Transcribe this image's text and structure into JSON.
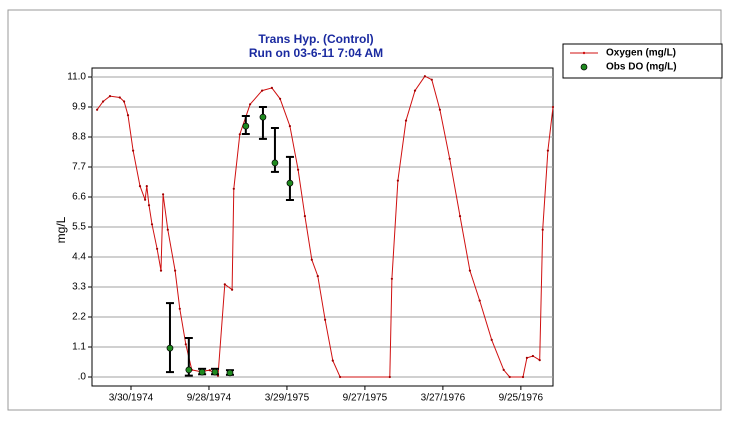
{
  "chart_data": {
    "type": "line",
    "title": "Trans Hyp. (Control)",
    "subtitle": "Run on 03-6-11 7:04 AM",
    "y_label": "mg/L",
    "grid": true,
    "legend": "top-right",
    "xlim": [
      "1973-12-29",
      "1976-12-09"
    ],
    "xticks": [
      {
        "value": "1974-03-30",
        "label": "3/30/1974"
      },
      {
        "value": "1974-09-28",
        "label": "9/28/1974"
      },
      {
        "value": "1975-03-29",
        "label": "3/29/1975"
      },
      {
        "value": "1975-09-27",
        "label": "9/27/1975"
      },
      {
        "value": "1976-03-27",
        "label": "3/27/1976"
      },
      {
        "value": "1976-09-25",
        "label": "9/25/1976"
      }
    ],
    "ylim": [
      0,
      11
    ],
    "yticks": [
      {
        "value": 0,
        "label": ".0"
      },
      1.1,
      2.2,
      3.3,
      4.4,
      5.5,
      6.6,
      7.7,
      8.8,
      9.9,
      {
        "value": 11,
        "label": "11.0"
      }
    ],
    "series": [
      {
        "name": "Oxygen (mg/L)",
        "color": "#d01010",
        "x": [
          "1974-01-10",
          "1974-01-24",
          "1974-02-09",
          "1974-03-04",
          "1974-03-14",
          "1974-03-23",
          "1974-04-04",
          "1974-04-20",
          "1974-05-02",
          "1974-05-06",
          "1974-05-11",
          "1974-05-18",
          "1974-05-30",
          "1974-06-08",
          "1974-06-13",
          "1974-06-24",
          "1974-07-11",
          "1974-07-22",
          "1974-08-05",
          "1974-08-19",
          "1974-09-07",
          "1974-09-30",
          "1974-10-19",
          "1974-11-04",
          "1974-11-21",
          "1974-11-25",
          "1974-12-09",
          "1975-01-02",
          "1975-01-30",
          "1975-02-22",
          "1975-03-13",
          "1975-04-05",
          "1975-04-24",
          "1975-05-10",
          "1975-05-26",
          "1975-06-09",
          "1975-06-26",
          "1975-07-14",
          "1975-07-31",
          "1975-11-24",
          "1975-11-29",
          "1975-12-13",
          "1976-01-01",
          "1976-01-22",
          "1976-02-14",
          "1976-03-01",
          "1976-03-20",
          "1976-04-12",
          "1976-05-06",
          "1976-05-29",
          "1976-06-21",
          "1976-07-19",
          "1976-08-16",
          "1976-08-30",
          "1976-09-30",
          "1976-10-09",
          "1976-10-23",
          "1976-11-08",
          "1976-11-15",
          "1976-11-27",
          "1976-12-09"
        ],
        "values": [
          9.8,
          10.1,
          10.3,
          10.25,
          10.1,
          9.6,
          8.3,
          7.0,
          6.5,
          7.0,
          6.3,
          5.6,
          4.7,
          3.9,
          6.7,
          5.4,
          3.9,
          2.5,
          1.2,
          0.26,
          0.2,
          0.25,
          0.05,
          3.4,
          3.2,
          6.9,
          8.9,
          10.0,
          10.5,
          10.6,
          10.2,
          9.2,
          7.6,
          5.9,
          4.3,
          3.7,
          2.1,
          0.6,
          0,
          0,
          3.6,
          7.2,
          9.4,
          10.5,
          11.03,
          10.9,
          9.8,
          8.0,
          5.9,
          3.9,
          2.8,
          1.36,
          0.26,
          0,
          0,
          0.7,
          0.77,
          0.62,
          5.4,
          8.3,
          9.9
        ]
      },
      {
        "name": "Obs DO (mg/L)",
        "color": "#1f8a1f",
        "type": "scatter",
        "x": [
          "1974-06-29",
          "1974-08-12",
          "1974-09-12",
          "1974-10-12",
          "1974-11-16",
          "1974-12-23",
          "1975-02-01",
          "1975-03-01",
          "1975-04-05"
        ],
        "values": [
          1.06,
          0.26,
          0.18,
          0.18,
          0.15,
          9.2,
          9.53,
          7.85,
          7.11
        ],
        "lower": [
          0.18,
          0.05,
          0.1,
          0.1,
          0.08,
          8.91,
          8.73,
          7.52,
          6.49
        ],
        "upper": [
          2.71,
          1.43,
          0.3,
          0.3,
          0.25,
          9.57,
          9.9,
          9.13,
          8.07
        ]
      }
    ]
  }
}
